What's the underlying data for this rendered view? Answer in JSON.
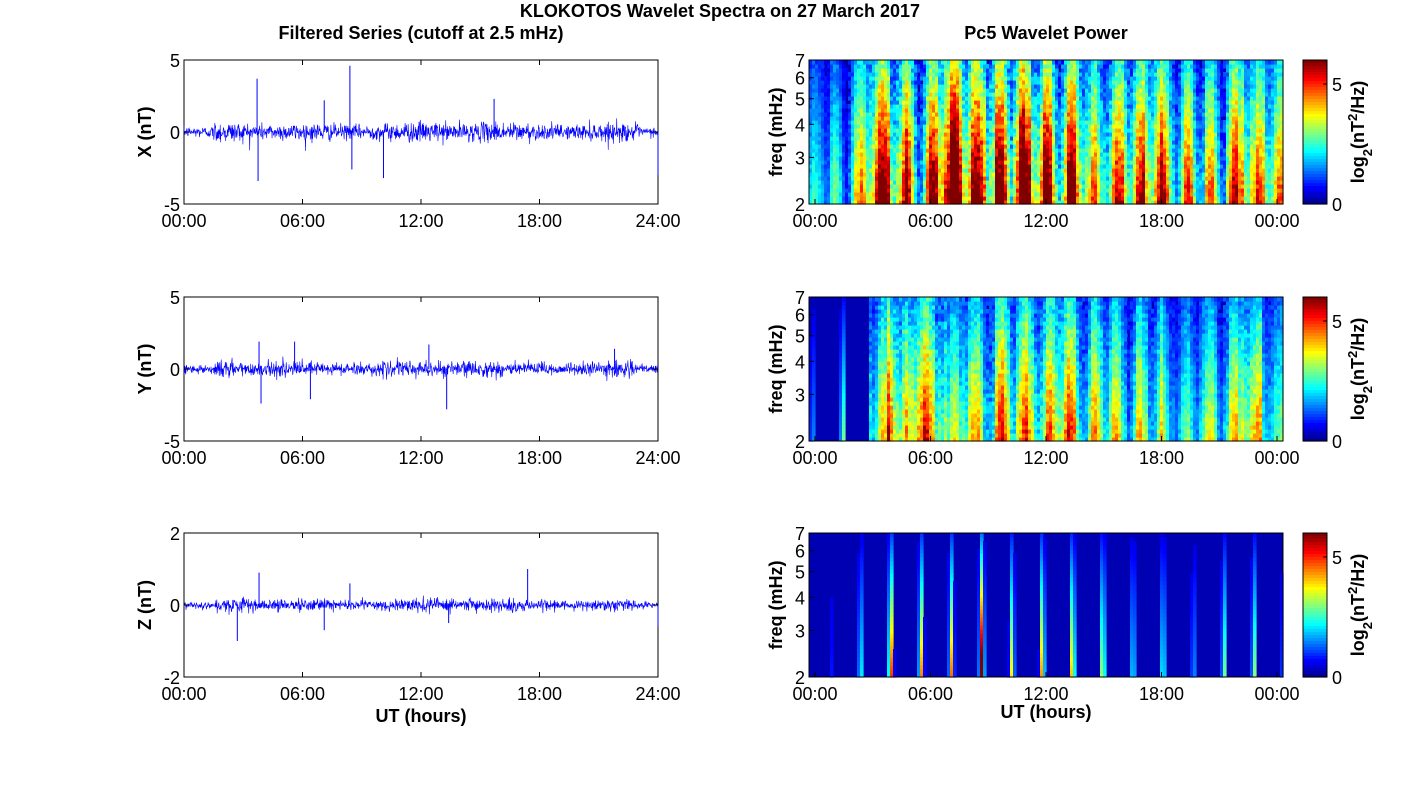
{
  "title": "KLOKOTOS Wavelet Spectra on 27 March 2017",
  "left_column_title": "Filtered Series (cutoff at 2.5 mHz)",
  "right_column_title": "Pc5 Wavelet Power",
  "colors": {
    "series_line": "#0000ff",
    "axes": "#000000",
    "background": "#ffffff",
    "colormap": "jet"
  },
  "chart_data": [
    {
      "type": "line",
      "panel": "X",
      "ylabel": "X (nT)",
      "xlabel": "",
      "ylim": [
        -5,
        5
      ],
      "yticks": [
        "5",
        "0",
        "-5"
      ],
      "xticks": [
        "00:00",
        "06:00",
        "12:00",
        "18:00",
        "24:00"
      ],
      "xlim_hours": [
        0,
        24
      ],
      "series": [
        {
          "noise_std_nT": 0.3,
          "spikes": [
            {
              "t": 3.7,
              "v": 3.7
            },
            {
              "t": 3.75,
              "v": -3.4
            },
            {
              "t": 7.1,
              "v": 2.2
            },
            {
              "t": 8.4,
              "v": 4.6
            },
            {
              "t": 8.5,
              "v": -2.6
            },
            {
              "t": 10.1,
              "v": -3.2
            },
            {
              "t": 15.7,
              "v": 2.3
            },
            {
              "t": 24.0,
              "v": -3.0
            }
          ]
        }
      ]
    },
    {
      "type": "line",
      "panel": "Y",
      "ylabel": "Y (nT)",
      "xlabel": "",
      "ylim": [
        -5,
        5
      ],
      "yticks": [
        "5",
        "0",
        "-5"
      ],
      "xticks": [
        "00:00",
        "06:00",
        "12:00",
        "18:00",
        "24:00"
      ],
      "xlim_hours": [
        0,
        24
      ],
      "series": [
        {
          "noise_std_nT": 0.25,
          "spikes": [
            {
              "t": 3.8,
              "v": 1.9
            },
            {
              "t": 3.9,
              "v": -2.4
            },
            {
              "t": 5.6,
              "v": 1.9
            },
            {
              "t": 6.4,
              "v": -2.1
            },
            {
              "t": 12.4,
              "v": 1.7
            },
            {
              "t": 13.3,
              "v": -2.8
            },
            {
              "t": 21.8,
              "v": 1.4
            }
          ]
        }
      ]
    },
    {
      "type": "line",
      "panel": "Z",
      "ylabel": "Z (nT)",
      "xlabel": "UT (hours)",
      "ylim": [
        -2,
        2
      ],
      "yticks": [
        "2",
        "0",
        "-2"
      ],
      "xticks": [
        "00:00",
        "06:00",
        "12:00",
        "18:00",
        "24:00"
      ],
      "xlim_hours": [
        0,
        24
      ],
      "series": [
        {
          "noise_std_nT": 0.08,
          "spikes": [
            {
              "t": 2.7,
              "v": -1.0
            },
            {
              "t": 3.8,
              "v": 0.9
            },
            {
              "t": 7.1,
              "v": -0.7
            },
            {
              "t": 8.4,
              "v": 0.6
            },
            {
              "t": 13.4,
              "v": -0.5
            },
            {
              "t": 17.4,
              "v": 1.0
            },
            {
              "t": 24.0,
              "v": -0.6
            }
          ]
        }
      ]
    },
    {
      "type": "heatmap",
      "panel": "X",
      "ylabel": "freq (mHz)",
      "xlabel": "",
      "yscale": "log",
      "ylim_mHz": [
        2,
        7
      ],
      "yticks": [
        "7",
        "6",
        "5",
        "4",
        "3",
        "2"
      ],
      "xticks": [
        "00:00",
        "06:00",
        "12:00",
        "18:00",
        "00:00"
      ],
      "colorbar_label": "log2(nT2/Hz)",
      "colorbar_ticks": [
        "5",
        "0"
      ],
      "clim": [
        0,
        6
      ],
      "activity_by_hour": [
        0.5,
        0.6,
        0.9,
        1.2,
        1.3,
        1.3,
        1.4,
        1.3,
        1.5,
        1.5,
        1.4,
        1.3,
        1.3,
        1.2,
        1.1,
        1.2,
        1.2,
        1.1,
        1.0,
        1.0,
        1.0,
        1.1,
        1.0,
        1.0
      ]
    },
    {
      "type": "heatmap",
      "panel": "Y",
      "ylabel": "freq (mHz)",
      "xlabel": "",
      "yscale": "log",
      "ylim_mHz": [
        2,
        7
      ],
      "yticks": [
        "7",
        "6",
        "5",
        "4",
        "3",
        "2"
      ],
      "xticks": [
        "00:00",
        "06:00",
        "12:00",
        "18:00",
        "00:00"
      ],
      "colorbar_label": "log2(nT2/Hz)",
      "colorbar_ticks": [
        "5",
        "0"
      ],
      "clim": [
        0,
        6
      ],
      "activity_by_hour": [
        0.1,
        0.2,
        0.4,
        0.9,
        1.2,
        1.1,
        1.1,
        0.8,
        0.9,
        1.0,
        1.0,
        1.0,
        1.1,
        1.0,
        0.9,
        0.8,
        0.8,
        0.8,
        0.6,
        0.7,
        0.7,
        0.9,
        1.0,
        0.7
      ]
    },
    {
      "type": "heatmap",
      "panel": "Z",
      "ylabel": "freq (mHz)",
      "xlabel": "UT (hours)",
      "yscale": "log",
      "ylim_mHz": [
        2,
        7
      ],
      "yticks": [
        "7",
        "6",
        "5",
        "4",
        "3",
        "2"
      ],
      "xticks": [
        "00:00",
        "06:00",
        "12:00",
        "18:00",
        "00:00"
      ],
      "colorbar_label": "log2(nT2/Hz)",
      "colorbar_ticks": [
        "5",
        "0"
      ],
      "clim": [
        0,
        6
      ],
      "activity_by_hour": [
        0.0,
        0.05,
        0.15,
        0.4,
        0.35,
        0.3,
        0.35,
        0.3,
        0.45,
        0.3,
        0.25,
        0.3,
        0.3,
        0.3,
        0.25,
        0.2,
        0.15,
        0.2,
        0.15,
        0.1,
        0.15,
        0.2,
        0.2,
        0.2
      ]
    }
  ]
}
